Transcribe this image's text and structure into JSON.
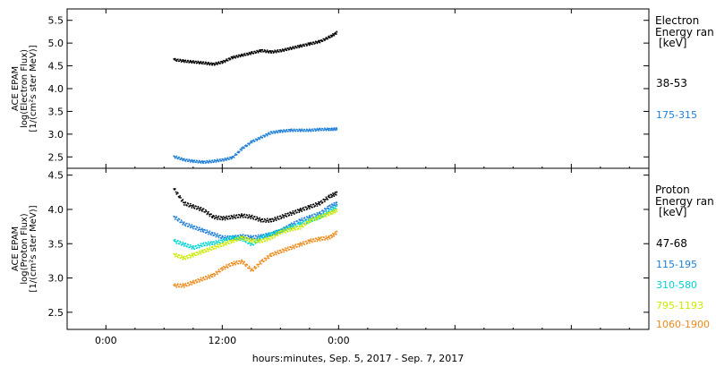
{
  "chart_data": [
    {
      "type": "scatter",
      "panel": "electron",
      "ylabel": [
        "ACE EPAM",
        "log(Electron Flux)",
        "[1/(cm²s ster MeV)]"
      ],
      "ylim": [
        2.25,
        5.75
      ],
      "yticks": [
        "2.5",
        "3.0",
        "3.5",
        "4.0",
        "4.5",
        "5.0",
        "5.5"
      ],
      "xlim": [
        -4,
        56
      ],
      "legend_title": [
        "Electron",
        "Energy ran",
        "[keV]"
      ],
      "series": [
        {
          "name": "38-53",
          "color": "#000000",
          "x": [
            7.0,
            8,
            9,
            10,
            11,
            12,
            13,
            14,
            15,
            16,
            17,
            18,
            19,
            20,
            21,
            22,
            23,
            23.8
          ],
          "y": [
            4.65,
            4.62,
            4.6,
            4.58,
            4.55,
            4.6,
            4.7,
            4.75,
            4.8,
            4.85,
            4.82,
            4.85,
            4.9,
            4.95,
            5.0,
            5.05,
            5.15,
            5.25
          ]
        },
        {
          "name": "175-315",
          "color": "#1e7fd8",
          "x": [
            7.0,
            8,
            9,
            10,
            11,
            12,
            13,
            14,
            15,
            16,
            17,
            18,
            19,
            20,
            21,
            22,
            23,
            23.8
          ],
          "y": [
            2.52,
            2.45,
            2.42,
            2.4,
            2.42,
            2.45,
            2.5,
            2.7,
            2.85,
            2.95,
            3.05,
            3.08,
            3.1,
            3.1,
            3.1,
            3.12,
            3.12,
            3.13
          ]
        }
      ]
    },
    {
      "type": "scatter",
      "panel": "proton",
      "ylabel": [
        "ACE EPAM",
        "log(Proton Flux)",
        "[1/(cm²s ster MeV)]"
      ],
      "ylim": [
        2.25,
        4.6
      ],
      "yticks": [
        "2.5",
        "3.0",
        "3.5",
        "4.0",
        "4.5"
      ],
      "xlim": [
        -4,
        56
      ],
      "xticks": [
        "0:00",
        "12:00",
        "0:00"
      ],
      "xlabel": "hours:minutes, Sep.  5, 2017 - Sep.  7, 2017",
      "legend_title": [
        "Proton",
        "Energy ran",
        "[keV]"
      ],
      "series": [
        {
          "name": "47-68",
          "color": "#000000",
          "x": [
            7.0,
            8,
            9,
            10,
            11,
            12,
            13,
            14,
            15,
            16,
            17,
            18,
            19,
            20,
            21,
            22,
            23,
            23.8
          ],
          "y": [
            4.3,
            4.1,
            4.05,
            4.0,
            3.9,
            3.88,
            3.9,
            3.92,
            3.9,
            3.85,
            3.85,
            3.9,
            3.95,
            4.0,
            4.05,
            4.1,
            4.2,
            4.25
          ]
        },
        {
          "name": "115-195",
          "color": "#1e7fd8",
          "x": [
            7.0,
            8,
            9,
            10,
            11,
            12,
            13,
            14,
            15,
            16,
            17,
            18,
            19,
            20,
            21,
            22,
            23,
            23.8
          ],
          "y": [
            3.9,
            3.8,
            3.75,
            3.7,
            3.65,
            3.6,
            3.6,
            3.62,
            3.6,
            3.62,
            3.65,
            3.7,
            3.78,
            3.85,
            3.9,
            3.95,
            4.05,
            4.1
          ]
        },
        {
          "name": "310-580",
          "color": "#00d4d4",
          "x": [
            7.0,
            8,
            9,
            10,
            11,
            12,
            13,
            14,
            15,
            16,
            17,
            18,
            19,
            20,
            21,
            22,
            23,
            23.8
          ],
          "y": [
            3.55,
            3.5,
            3.45,
            3.5,
            3.52,
            3.55,
            3.6,
            3.58,
            3.5,
            3.6,
            3.65,
            3.7,
            3.75,
            3.8,
            3.85,
            3.9,
            3.98,
            4.05
          ]
        },
        {
          "name": "795-1193",
          "color": "#ccea00",
          "x": [
            7.0,
            8,
            9,
            10,
            11,
            12,
            13,
            14,
            15,
            16,
            17,
            18,
            19,
            20,
            21,
            22,
            23,
            23.8
          ],
          "y": [
            3.35,
            3.3,
            3.35,
            3.4,
            3.45,
            3.5,
            3.55,
            3.6,
            3.55,
            3.55,
            3.6,
            3.68,
            3.72,
            3.75,
            3.85,
            3.9,
            3.95,
            4.0
          ]
        },
        {
          "name": "1060-1900",
          "color": "#ee8a1a",
          "x": [
            7.0,
            8,
            9,
            10,
            11,
            12,
            13,
            14,
            15,
            16,
            17,
            18,
            19,
            20,
            21,
            22,
            23,
            23.8
          ],
          "y": [
            2.9,
            2.9,
            2.95,
            3.0,
            3.05,
            3.15,
            3.22,
            3.25,
            3.12,
            3.25,
            3.35,
            3.4,
            3.45,
            3.5,
            3.55,
            3.58,
            3.6,
            3.68
          ]
        }
      ]
    }
  ]
}
